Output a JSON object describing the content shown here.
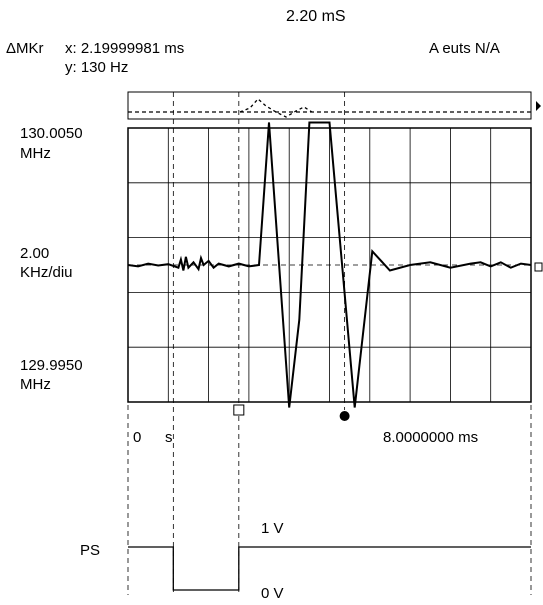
{
  "header": {
    "title": "2.20 mS",
    "marker_label": "ΔMKr",
    "marker_x": "x: 2.19999981 ms",
    "marker_y": "y: 130 Hz",
    "status": "A euts N/A"
  },
  "chart_data": [
    {
      "type": "line",
      "role": "frequency vs time",
      "ytick_top": [
        "130.0050",
        "MHz"
      ],
      "ytick_mid": [
        "2.00",
        "KHz/diu"
      ],
      "ytick_bottom": [
        "129.9950",
        "MHz"
      ],
      "ylim_khz": [
        -5,
        5
      ],
      "xlim_ms": [
        0,
        8
      ],
      "xtick_start": "0",
      "xtick_start_unit": "s",
      "xtick_end": "8.0000000 ms",
      "grid": true,
      "markers_ms": [
        0.9,
        2.2,
        4.3
      ],
      "points": [
        [
          0.0,
          0.0
        ],
        [
          0.2,
          -0.05
        ],
        [
          0.4,
          0.05
        ],
        [
          0.6,
          -0.02
        ],
        [
          0.8,
          0.03
        ],
        [
          1.0,
          -0.1
        ],
        [
          1.05,
          0.2
        ],
        [
          1.1,
          -0.2
        ],
        [
          1.15,
          0.3
        ],
        [
          1.2,
          -0.1
        ],
        [
          1.3,
          0.1
        ],
        [
          1.4,
          -0.15
        ],
        [
          1.45,
          0.25
        ],
        [
          1.5,
          0.0
        ],
        [
          1.6,
          0.15
        ],
        [
          1.7,
          -0.1
        ],
        [
          1.8,
          0.05
        ],
        [
          2.0,
          -0.05
        ],
        [
          2.2,
          0.05
        ],
        [
          2.4,
          -0.05
        ],
        [
          2.6,
          0.0
        ],
        [
          2.8,
          5.2
        ],
        [
          3.2,
          -5.2
        ],
        [
          3.4,
          -2.0
        ],
        [
          3.6,
          5.2
        ],
        [
          4.0,
          5.2
        ],
        [
          4.5,
          -5.2
        ],
        [
          4.85,
          0.5
        ],
        [
          5.2,
          -0.2
        ],
        [
          5.6,
          0.0
        ],
        [
          6.0,
          0.1
        ],
        [
          6.4,
          -0.1
        ],
        [
          6.8,
          0.05
        ],
        [
          7.0,
          0.1
        ],
        [
          7.2,
          -0.05
        ],
        [
          7.4,
          0.1
        ],
        [
          7.6,
          -0.1
        ],
        [
          7.8,
          0.05
        ],
        [
          8.0,
          0.0
        ]
      ]
    },
    {
      "type": "line",
      "role": "pulse",
      "series_label": "PS",
      "high_label": "1 V",
      "low_label": "0 V",
      "points": [
        [
          0.0,
          1
        ],
        [
          0.9,
          1
        ],
        [
          0.9,
          0
        ],
        [
          2.2,
          0
        ],
        [
          2.2,
          1
        ],
        [
          8.0,
          1
        ]
      ]
    }
  ]
}
